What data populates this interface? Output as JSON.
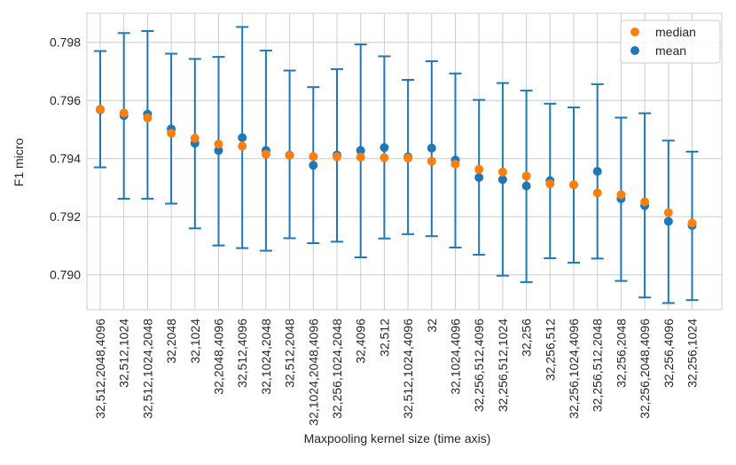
{
  "chart_data": {
    "type": "errorbar",
    "title": "",
    "xlabel": "Maxpooling kernel size (time axis)",
    "ylabel": "F1 micro",
    "ylim": [
      0.7888,
      0.799
    ],
    "yticks": [
      0.79,
      0.792,
      0.794,
      0.796,
      0.798
    ],
    "ytick_labels": [
      "0.790",
      "0.792",
      "0.794",
      "0.796",
      "0.798"
    ],
    "grid": true,
    "legend_position": "top-right",
    "colors": {
      "mean": "#1f77b4",
      "median": "#ff7f0e",
      "grid": "#cccccc",
      "axis": "#cccccc"
    },
    "categories": [
      "32,512,2048,4096",
      "32,512,1024",
      "32,512,1024,2048",
      "32,2048",
      "32,1024",
      "32,2048,4096",
      "32,512,4096",
      "32,1024,2048",
      "32,512,2048",
      "32,1024,2048,4096",
      "32,256,1024,2048",
      "32,4096",
      "32,512",
      "32,512,1024,4096",
      "32",
      "32,1024,4096",
      "32,256,512,4096",
      "32,256,512,1024",
      "32,256",
      "32,256,512",
      "32,256,1024,4096",
      "32,256,512,2048",
      "32,256,2048",
      "32,256,2048,4096",
      "32,256,4096",
      "32,256,1024"
    ],
    "series": [
      {
        "name": "median",
        "values": [
          0.7957,
          0.79557,
          0.7954,
          0.79487,
          0.7947,
          0.7945,
          0.79443,
          0.79415,
          0.79411,
          0.79407,
          0.79406,
          0.79405,
          0.79403,
          0.79402,
          0.79391,
          0.79381,
          0.79363,
          0.79354,
          0.7934,
          0.79313,
          0.7931,
          0.79282,
          0.79276,
          0.79251,
          0.79214,
          0.79178
        ]
      },
      {
        "name": "mean",
        "values": [
          0.79568,
          0.79548,
          0.79553,
          0.79502,
          0.79453,
          0.79428,
          0.79472,
          0.79428,
          0.79412,
          0.79377,
          0.79412,
          0.79428,
          0.79438,
          0.79406,
          0.79436,
          0.79395,
          0.79335,
          0.79328,
          0.79306,
          0.79324,
          0.7931,
          0.79356,
          0.79262,
          0.79238,
          0.79184,
          0.7917
        ]
      }
    ],
    "error_low": [
      0.7937,
      0.79262,
      0.79262,
      0.79245,
      0.7916,
      0.79101,
      0.79092,
      0.79083,
      0.79126,
      0.79109,
      0.79114,
      0.7906,
      0.79125,
      0.7914,
      0.79133,
      0.79094,
      0.79069,
      0.78997,
      0.78975,
      0.79057,
      0.79042,
      0.79056,
      0.78979,
      0.78922,
      0.78903,
      0.78913
    ],
    "error_high": [
      0.7977,
      0.79832,
      0.79839,
      0.79761,
      0.79743,
      0.7975,
      0.79853,
      0.79772,
      0.79703,
      0.79646,
      0.79708,
      0.79793,
      0.79752,
      0.79671,
      0.79735,
      0.79693,
      0.79602,
      0.7966,
      0.79634,
      0.79589,
      0.79576,
      0.79656,
      0.79541,
      0.79556,
      0.79462,
      0.79424
    ]
  }
}
